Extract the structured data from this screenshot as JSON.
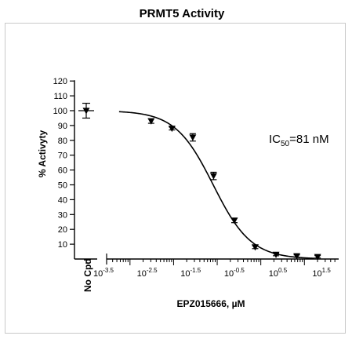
{
  "chart_data": {
    "type": "scatter",
    "title": "PRMT5 Activity",
    "xlabel": "EPZ015666, µM",
    "ylabel": "% Activyty",
    "annotation": "IC50=81 nM",
    "x_scale": "log10",
    "xlim_log": [
      -3.5,
      1.75
    ],
    "ylim": [
      0,
      120
    ],
    "y_ticks": [
      "10",
      "20",
      "30",
      "40",
      "50",
      "60",
      "70",
      "80",
      "90",
      "100",
      "110",
      "120"
    ],
    "x_tick_base": "10",
    "x_tick_exponents": [
      "-3.5",
      "-2.5",
      "-1.5",
      "-0.5",
      "0.5",
      "1.5"
    ],
    "control": {
      "label": "No Cpd",
      "y": 100,
      "err": 5
    },
    "points": [
      {
        "x": 0.00306,
        "y": 93,
        "err": 1.5
      },
      {
        "x": 0.00917,
        "y": 88,
        "err": 1
      },
      {
        "x": 0.0275,
        "y": 82,
        "err": 2.5
      },
      {
        "x": 0.0826,
        "y": 56,
        "err": 2.5
      },
      {
        "x": 0.248,
        "y": 26,
        "err": 1.5
      },
      {
        "x": 0.743,
        "y": 8,
        "err": 1
      },
      {
        "x": 2.23,
        "y": 3,
        "err": 0.8
      },
      {
        "x": 6.69,
        "y": 2,
        "err": 0.8
      },
      {
        "x": 20.1,
        "y": 1.5,
        "err": 0.8
      }
    ],
    "fit": {
      "top": 100,
      "bottom": 0,
      "ic50_uM": 0.081,
      "hill": 1
    },
    "marker_color": "#000000"
  }
}
